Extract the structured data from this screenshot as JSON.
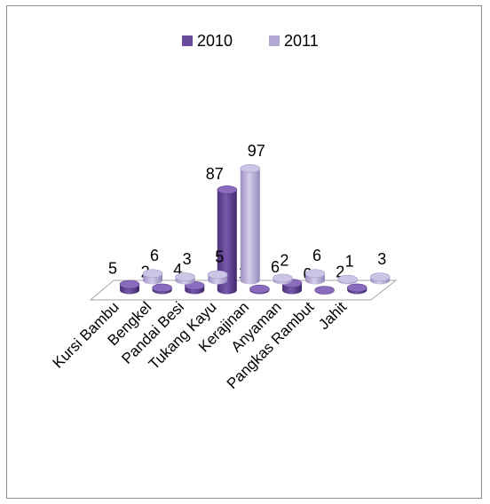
{
  "chart_data": {
    "type": "bar",
    "style": "3d-cylinder",
    "categories": [
      "Kursi Bambu",
      "Bengkel",
      "Pandai Besi",
      "Tukang Kayu",
      "Kerajinan",
      "Anyaman",
      "Pangkas Rambut",
      "Jahit"
    ],
    "series": [
      {
        "name": "2010",
        "color": "#6a4a9a",
        "values": [
          5,
          2,
          4,
          87,
          1,
          6,
          0,
          2
        ]
      },
      {
        "name": "2011",
        "color": "#b3a8d4",
        "values": [
          6,
          3,
          5,
          97,
          2,
          6,
          1,
          3
        ]
      }
    ],
    "legend_position": "top",
    "grid": false,
    "data_labels": true
  }
}
